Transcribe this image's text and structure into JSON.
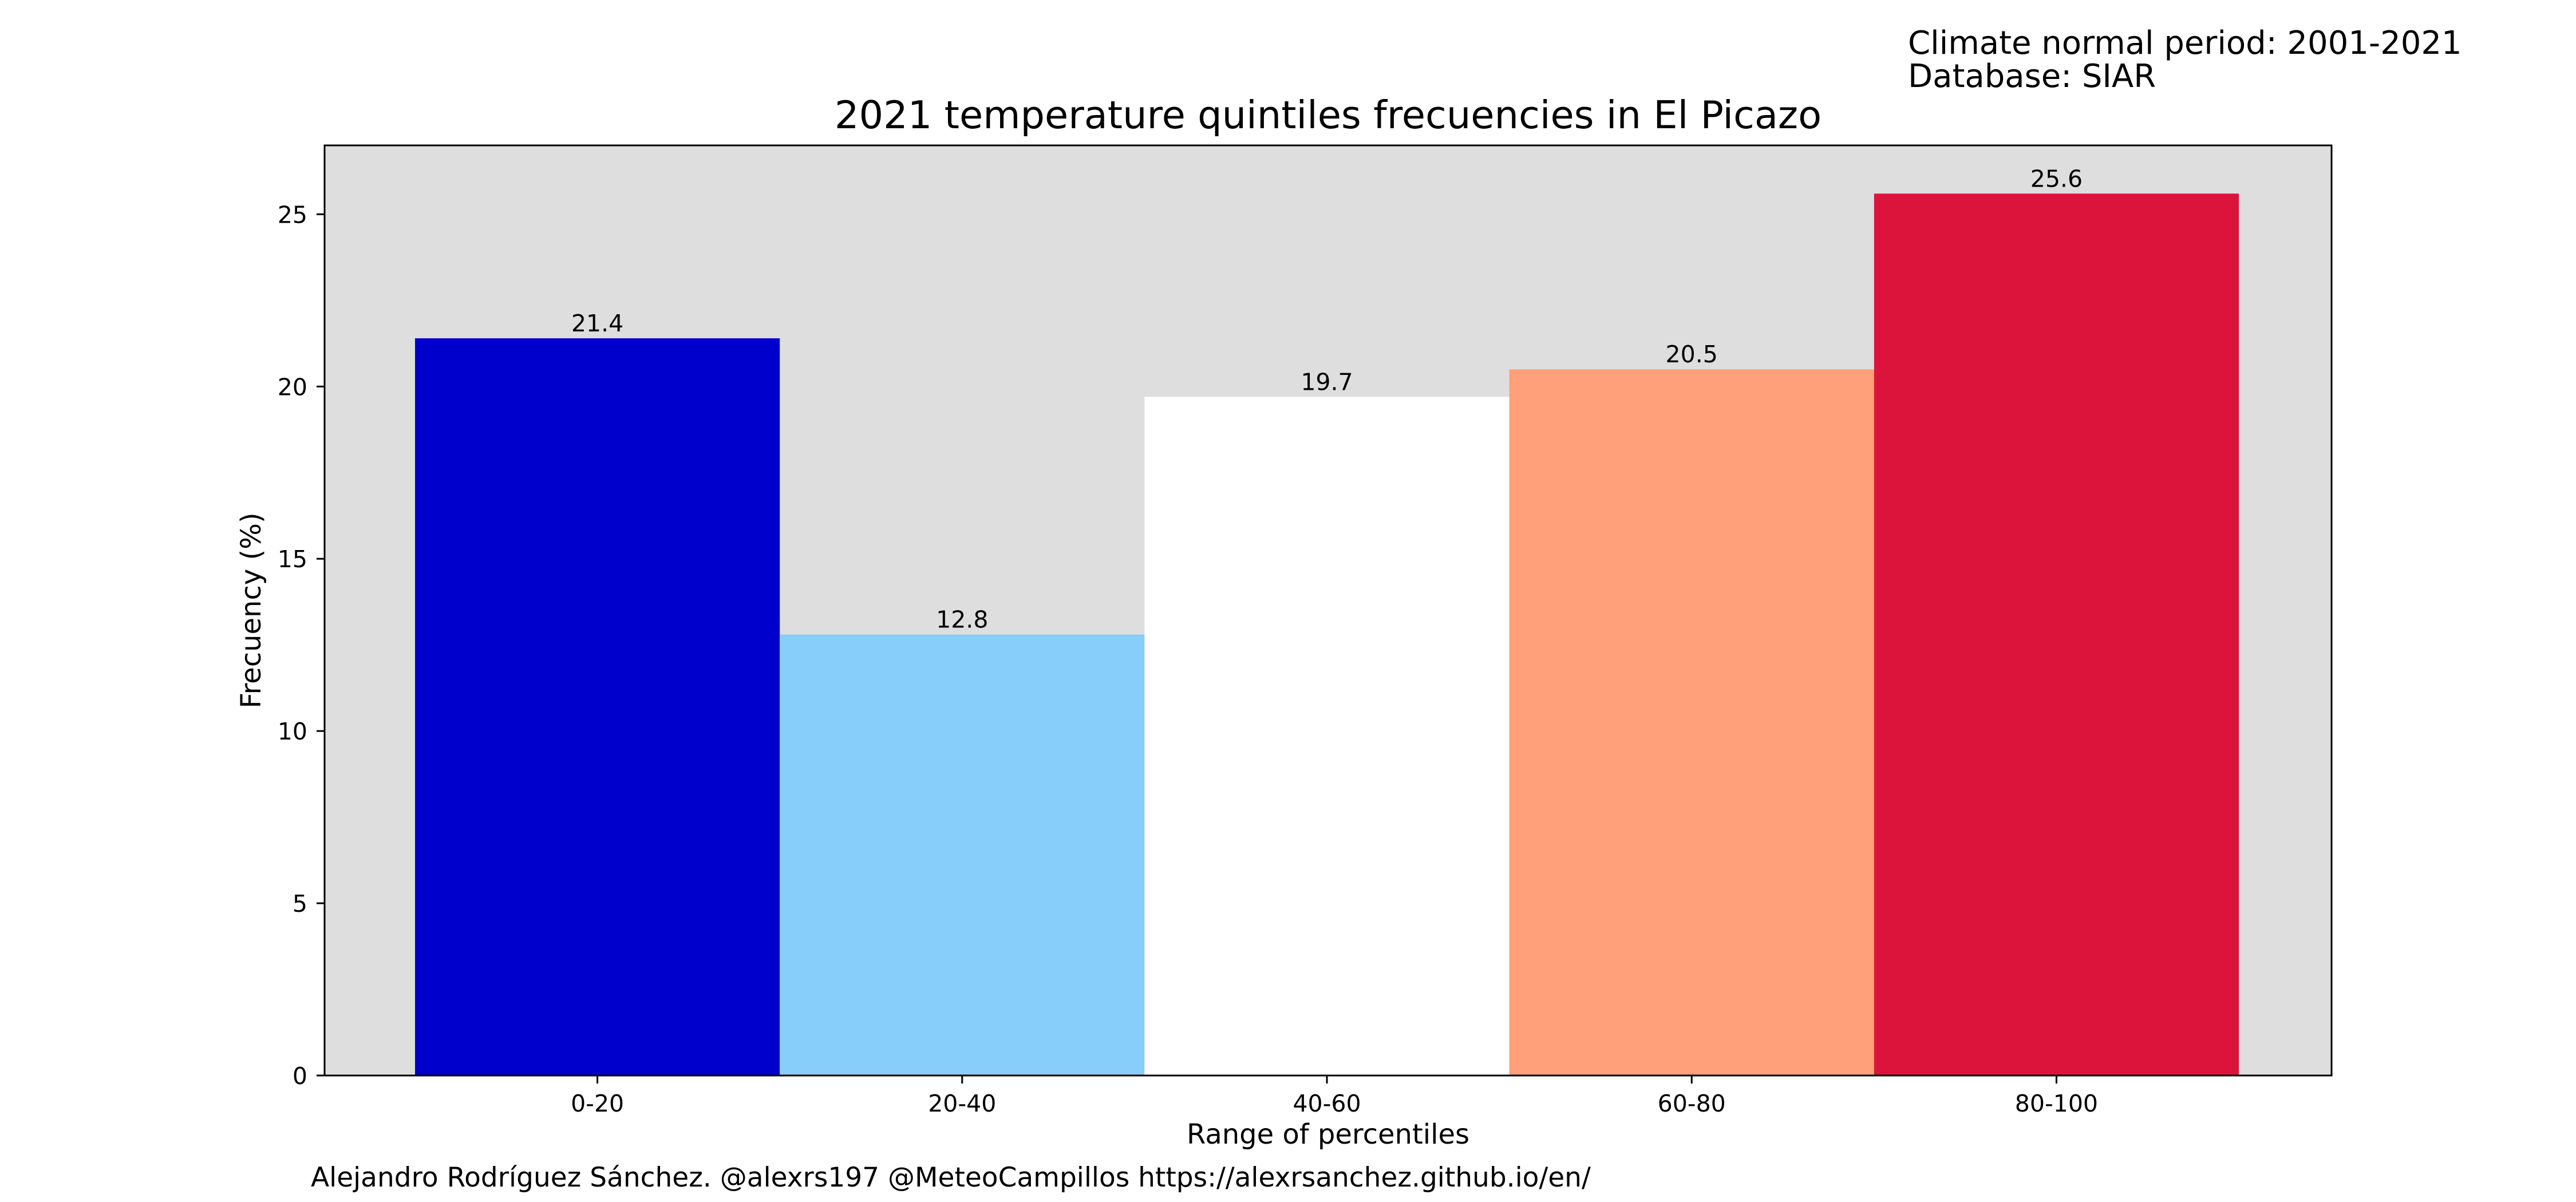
{
  "header": {
    "climate_period": "Climate normal period: 2001-2021",
    "database": "Database: SIAR"
  },
  "footer": {
    "credits": "Alejandro Rodríguez Sánchez. @alexrs197 @MeteoCampillos   https://alexrsanchez.github.io/en/"
  },
  "chart_data": {
    "type": "bar",
    "title": "2021 temperature quintiles frecuencies in El Picazo",
    "xlabel": "Range of percentiles",
    "ylabel": "Frecuency (%)",
    "categories": [
      "0-20",
      "20-40",
      "40-60",
      "60-80",
      "80-100"
    ],
    "values": [
      21.4,
      12.8,
      19.7,
      20.5,
      25.6
    ],
    "data_labels": [
      "21.4",
      "12.8",
      "19.7",
      "20.5",
      "25.6"
    ],
    "colors": [
      "#0000cd",
      "#87cefa",
      "#ffffff",
      "#ffa07a",
      "#dc143c"
    ],
    "background": "#dedede",
    "ylim": [
      0,
      27
    ],
    "yticks": [
      0,
      5,
      10,
      15,
      20,
      25
    ],
    "grid": false,
    "legend": "none"
  }
}
